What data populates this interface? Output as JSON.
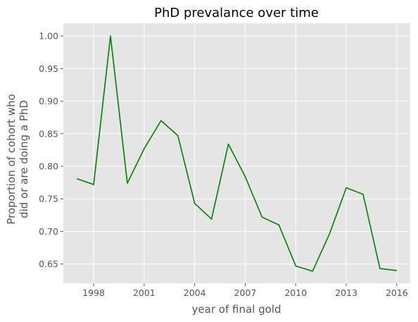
{
  "chart_data": {
    "type": "line",
    "title": "PhD prevalance over time",
    "xlabel": "year of final gold",
    "ylabel_lines": [
      "Proportion of cohort who",
      "did or are doing a PhD"
    ],
    "xlim": [
      1996.2,
      2016.8
    ],
    "ylim": [
      0.6205,
      1.0195
    ],
    "x_ticks": [
      1998,
      2001,
      2004,
      2007,
      2010,
      2013,
      2016
    ],
    "y_ticks": [
      0.65,
      0.7,
      0.75,
      0.8,
      0.85,
      0.9,
      0.95,
      1.0
    ],
    "x_tick_labels": [
      "1998",
      "2001",
      "2004",
      "2007",
      "2010",
      "2013",
      "2016"
    ],
    "y_tick_labels": [
      "0.65",
      "0.70",
      "0.75",
      "0.80",
      "0.85",
      "0.90",
      "0.95",
      "1.00"
    ],
    "grid": true,
    "series": [
      {
        "color": "#008000",
        "x": [
          1997,
          1998,
          1999,
          2000,
          2001,
          2002,
          2003,
          2004,
          2005,
          2006,
          2007,
          2008,
          2009,
          2010,
          2011,
          2012,
          2013,
          2014,
          2015,
          2016
        ],
        "y": [
          0.781,
          0.772,
          1.0,
          0.774,
          0.827,
          0.87,
          0.847,
          0.743,
          0.719,
          0.834,
          0.784,
          0.722,
          0.71,
          0.647,
          0.639,
          0.696,
          0.767,
          0.757,
          0.643,
          0.64
        ]
      }
    ]
  }
}
